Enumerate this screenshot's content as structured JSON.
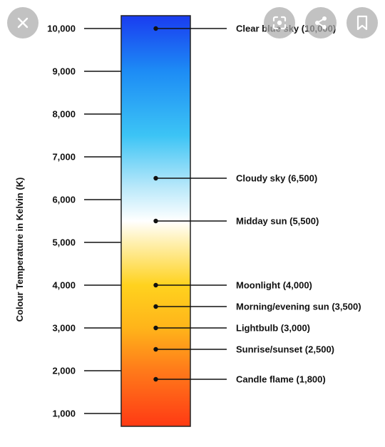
{
  "toolbar": {
    "icons": [
      "close-icon",
      "lens-icon",
      "share-icon",
      "bookmark-icon"
    ]
  },
  "chart_data": {
    "type": "bar",
    "ylabel": "Colour Temperature in Kelvin (K)",
    "ylim": [
      700,
      10300
    ],
    "y_ticks": [
      {
        "value": 1000,
        "label": "1,000"
      },
      {
        "value": 2000,
        "label": "2,000"
      },
      {
        "value": 3000,
        "label": "3,000"
      },
      {
        "value": 4000,
        "label": "4,000"
      },
      {
        "value": 5000,
        "label": "5,000"
      },
      {
        "value": 6000,
        "label": "6,000"
      },
      {
        "value": 7000,
        "label": "7,000"
      },
      {
        "value": 8000,
        "label": "8,000"
      },
      {
        "value": 9000,
        "label": "9,000"
      },
      {
        "value": 10000,
        "label": "10,000"
      }
    ],
    "gradient_stops": [
      {
        "value": 10300,
        "color": "#1a3cf0"
      },
      {
        "value": 9000,
        "color": "#1d8cf5"
      },
      {
        "value": 7500,
        "color": "#3cc4f5"
      },
      {
        "value": 6300,
        "color": "#b8e8fa"
      },
      {
        "value": 5500,
        "color": "#ffffff"
      },
      {
        "value": 5000,
        "color": "#fff0b0"
      },
      {
        "value": 4000,
        "color": "#ffd21e"
      },
      {
        "value": 3000,
        "color": "#ffb41a"
      },
      {
        "value": 2000,
        "color": "#ff7a1a"
      },
      {
        "value": 700,
        "color": "#ff3a14"
      }
    ],
    "annotations": [
      {
        "value": 10000,
        "label": "Clear blue sky (10,000)"
      },
      {
        "value": 6500,
        "label": "Cloudy sky (6,500)"
      },
      {
        "value": 5500,
        "label": "Midday sun (5,500)"
      },
      {
        "value": 4000,
        "label": "Moonlight (4,000)"
      },
      {
        "value": 3500,
        "label": "Morning/evening sun (3,500)"
      },
      {
        "value": 3000,
        "label": "Lightbulb (3,000)"
      },
      {
        "value": 2500,
        "label": "Sunrise/sunset (2,500)"
      },
      {
        "value": 1800,
        "label": "Candle flame (1,800)"
      }
    ]
  }
}
